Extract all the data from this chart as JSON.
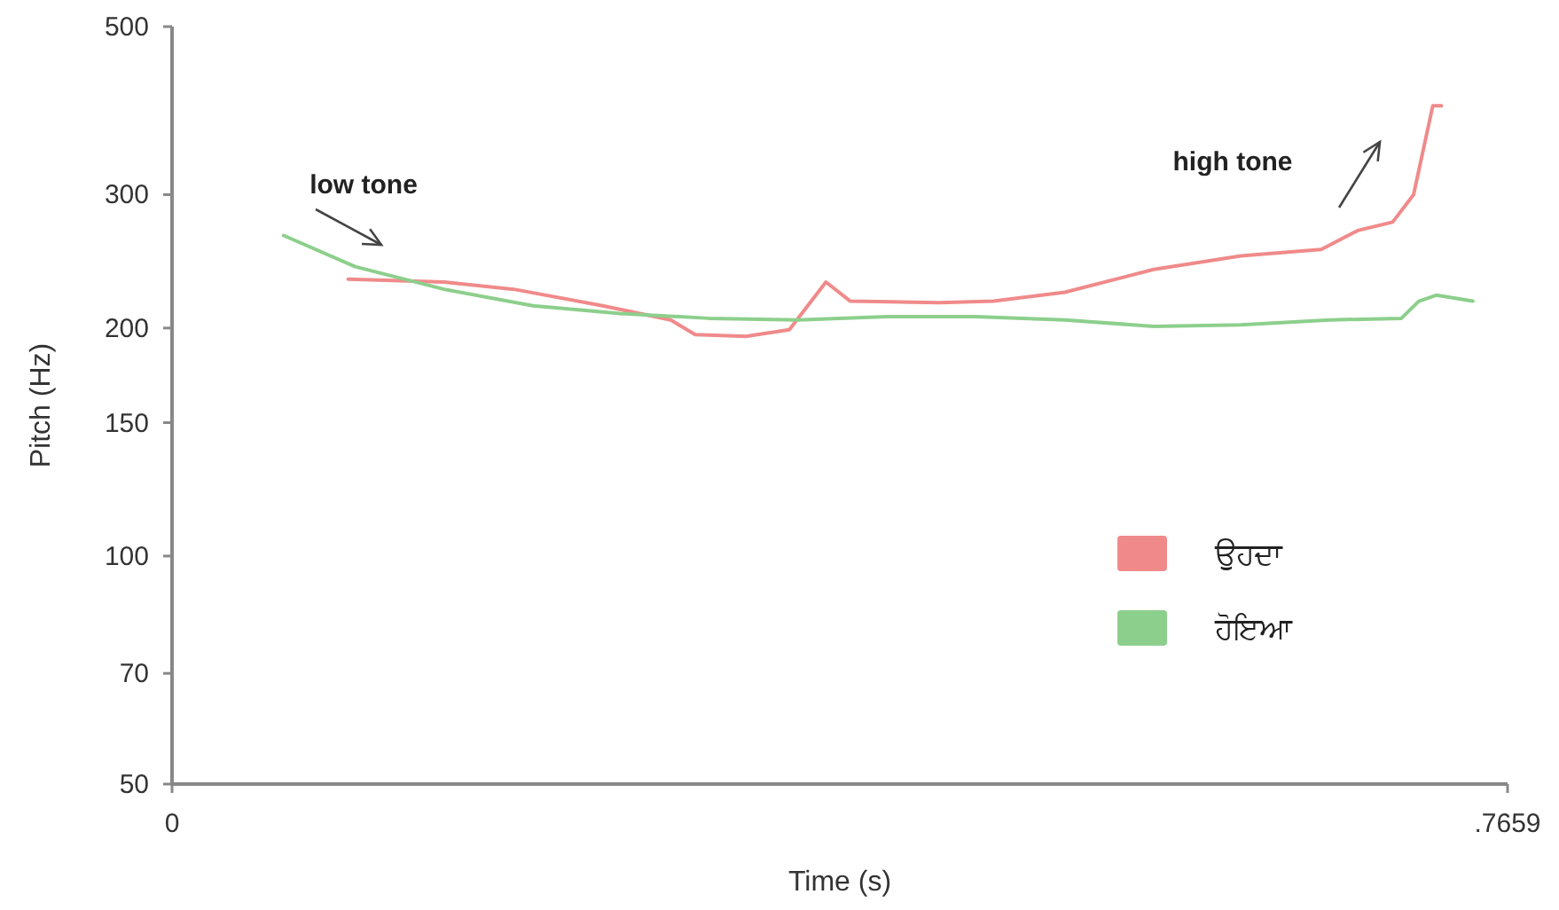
{
  "chart_data": {
    "type": "line",
    "xlabel": "Time (s)",
    "ylabel": "Pitch (Hz)",
    "log": "y",
    "xlim": [
      0,
      0.7659
    ],
    "xticks": [
      0,
      {
        "value": 0.7659,
        "label": ".7659"
      }
    ],
    "ylim": [
      50,
      500
    ],
    "yticks": [
      50,
      70,
      100,
      150,
      200,
      300,
      500
    ],
    "grid": false,
    "legend": "right",
    "marker": "none",
    "line_style": "solid",
    "annotations": [
      "low tone",
      "high tone"
    ],
    "series": [
      {
        "name": "ਉਹਦਾ",
        "color": "#f08a8a",
        "x": [
          0.101,
          0.156,
          0.196,
          0.247,
          0.286,
          0.3,
          0.329,
          0.354,
          0.375,
          0.389,
          0.44,
          0.471,
          0.512,
          0.563,
          0.613,
          0.659,
          0.68,
          0.7,
          0.712,
          0.723,
          0.728
        ],
        "values": [
          232,
          230,
          225,
          214,
          205,
          196,
          195,
          199,
          230,
          217,
          216,
          217,
          223,
          239,
          249,
          254,
          269,
          276,
          300,
          393,
          393
        ]
      },
      {
        "name": "ਹੋਇਆ",
        "color": "#8ccf8c",
        "x": [
          0.064,
          0.105,
          0.156,
          0.207,
          0.257,
          0.308,
          0.359,
          0.41,
          0.461,
          0.512,
          0.563,
          0.613,
          0.664,
          0.705,
          0.715,
          0.725,
          0.746
        ],
        "values": [
          265,
          241,
          225,
          214,
          209,
          206,
          205,
          207,
          207,
          205,
          201,
          202,
          205,
          206,
          217,
          221,
          217
        ]
      }
    ]
  }
}
